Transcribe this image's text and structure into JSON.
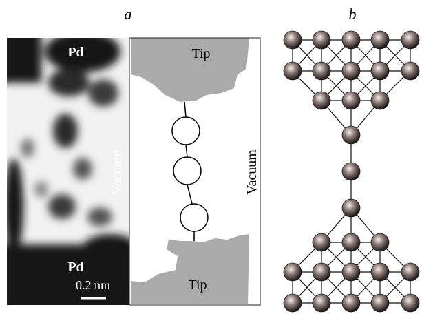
{
  "panels": {
    "a": {
      "label": "a",
      "image": {
        "top_label": "Pd",
        "bottom_label": "Pd",
        "scale_bar": "0.2 nm",
        "side_label": "Vacuum"
      },
      "schematic": {
        "top_label": "Tip",
        "bottom_label": "Tip",
        "side_label": "Vacuum"
      }
    },
    "b": {
      "label": "b"
    }
  }
}
